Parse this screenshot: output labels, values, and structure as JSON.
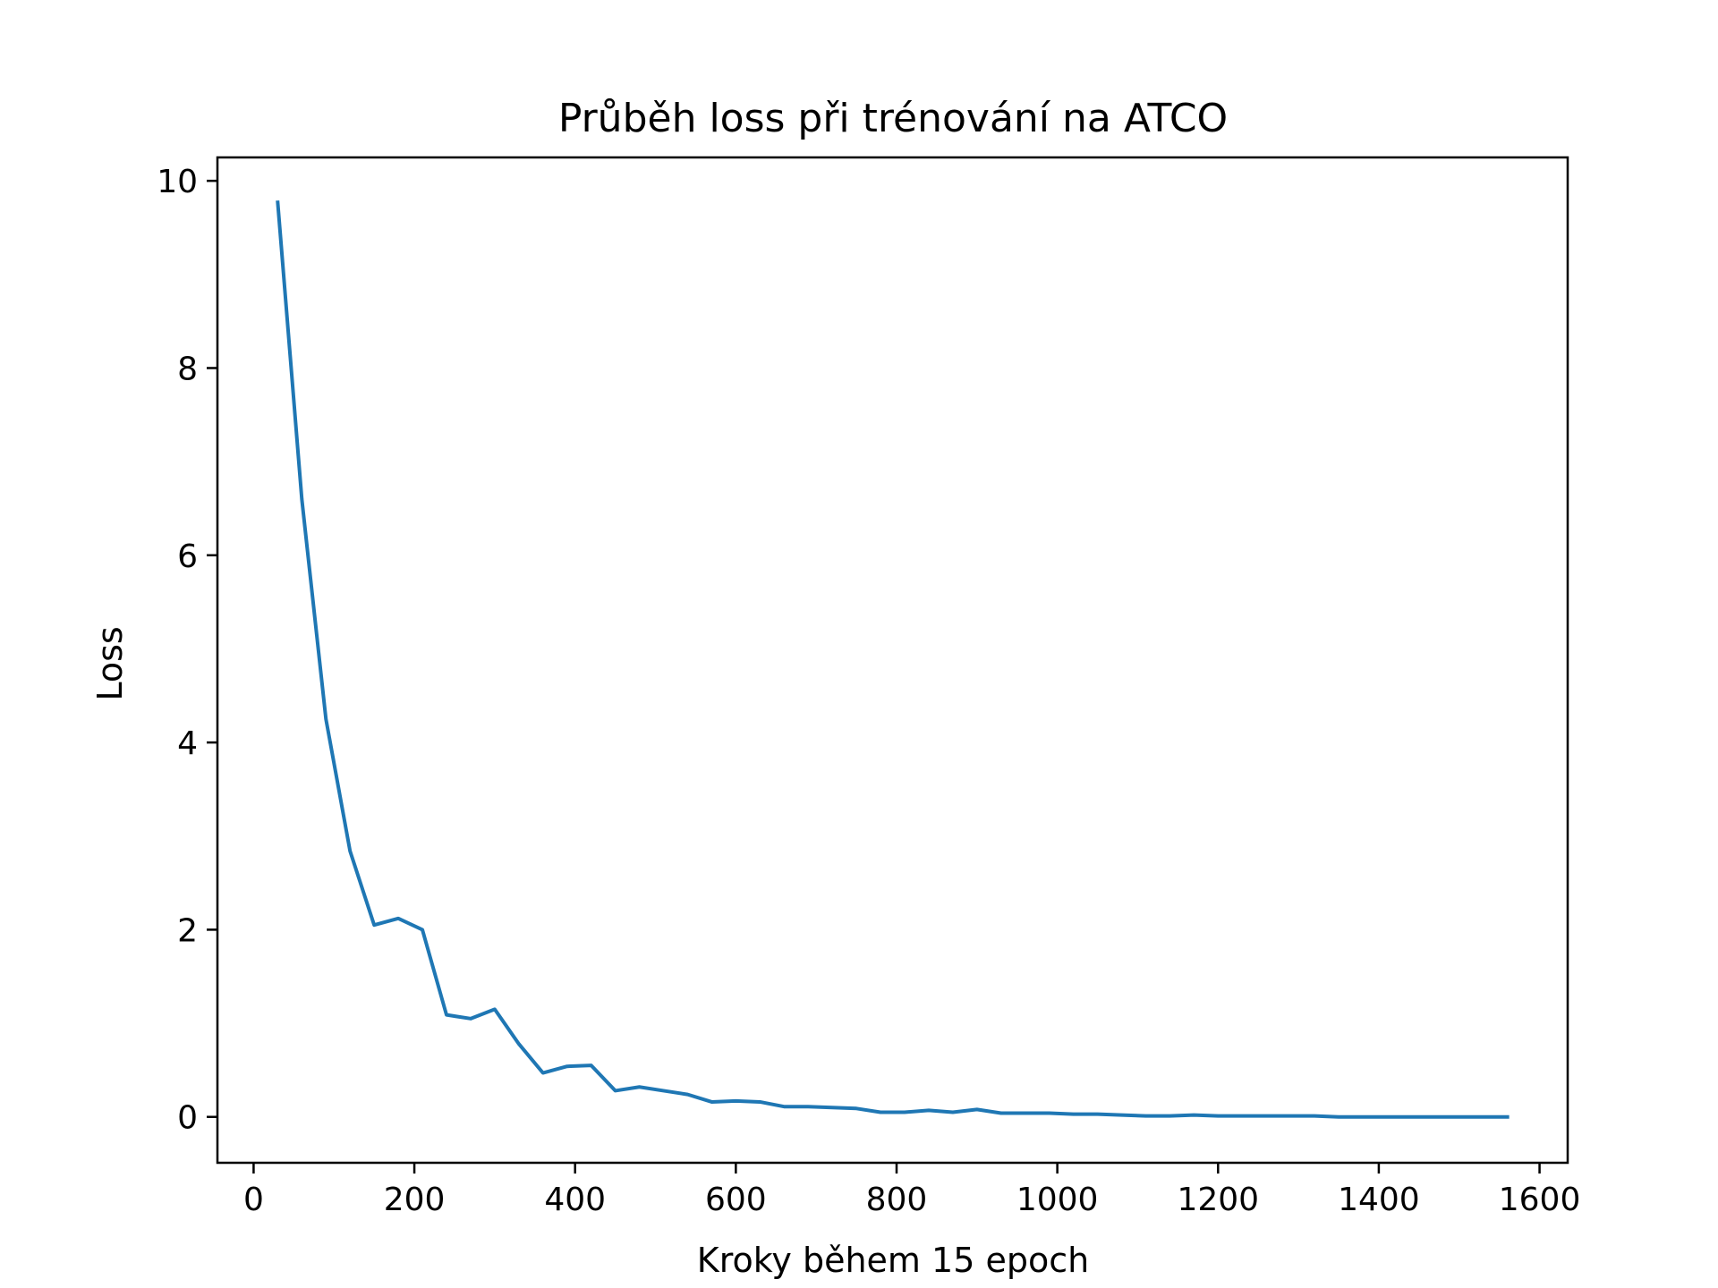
{
  "chart_data": {
    "type": "line",
    "title": "Průběh loss při trénování na ATCO",
    "xlabel": "Kroky během 15 epoch",
    "ylabel": "Loss",
    "xlim": [
      -45,
      1635
    ],
    "ylim": [
      -0.49,
      10.25
    ],
    "xticks": [
      0,
      200,
      400,
      600,
      800,
      1000,
      1200,
      1400,
      1600
    ],
    "yticks": [
      0,
      2,
      4,
      6,
      8,
      10
    ],
    "grid": false,
    "legend": "none",
    "series": [
      {
        "color": "#1f77b4",
        "x": [
          30,
          60,
          90,
          120,
          150,
          180,
          210,
          240,
          270,
          300,
          330,
          360,
          390,
          420,
          450,
          480,
          510,
          540,
          570,
          600,
          630,
          660,
          690,
          720,
          750,
          780,
          810,
          840,
          870,
          900,
          930,
          960,
          990,
          1020,
          1050,
          1080,
          1110,
          1140,
          1170,
          1200,
          1230,
          1260,
          1290,
          1320,
          1350,
          1380,
          1410,
          1440,
          1470,
          1500,
          1530,
          1560
        ],
        "y": [
          9.77,
          6.6,
          4.25,
          2.84,
          2.05,
          2.12,
          2.0,
          1.09,
          1.05,
          1.15,
          0.78,
          0.47,
          0.54,
          0.55,
          0.28,
          0.32,
          0.28,
          0.24,
          0.16,
          0.17,
          0.16,
          0.11,
          0.11,
          0.1,
          0.09,
          0.05,
          0.05,
          0.07,
          0.05,
          0.08,
          0.04,
          0.04,
          0.04,
          0.03,
          0.03,
          0.02,
          0.01,
          0.01,
          0.02,
          0.01,
          0.01,
          0.01,
          0.01,
          0.01,
          0.0,
          0.0,
          0.0,
          0.0,
          0.0,
          0.0,
          0.0,
          0.0
        ]
      }
    ]
  }
}
